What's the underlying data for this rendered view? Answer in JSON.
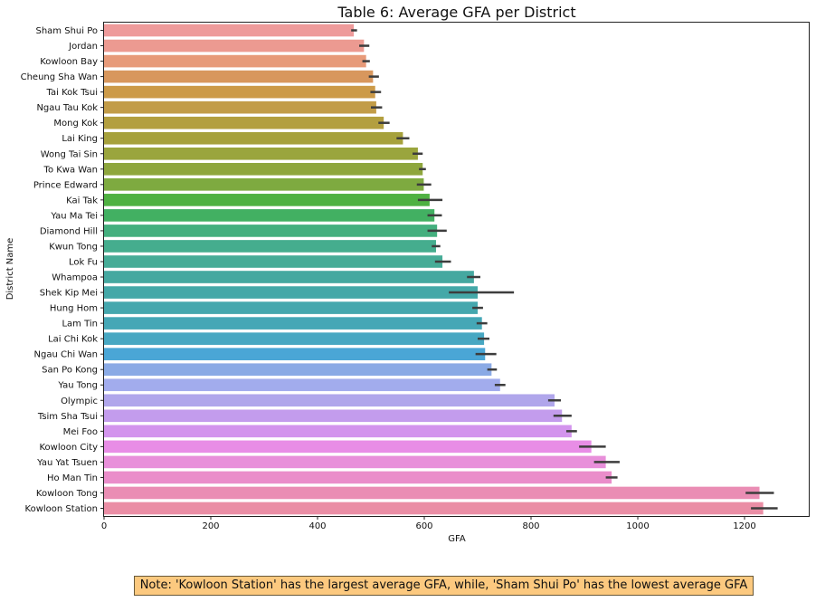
{
  "chart_data": {
    "type": "bar",
    "orientation": "horizontal",
    "title": "Table 6: Average GFA per District",
    "xlabel": "GFA",
    "ylabel": "District Name",
    "xlim": [
      0,
      1322
    ],
    "xticks": [
      0,
      200,
      400,
      600,
      800,
      1000,
      1200
    ],
    "grid": false,
    "error_bars": true,
    "categories": [
      "Sham Shui Po",
      "Jordan",
      "Kowloon Bay",
      "Cheung Sha Wan",
      "Tai Kok Tsui",
      "Ngau Tau Kok",
      "Mong Kok",
      "Lai King",
      "Wong Tai Sin",
      "To Kwa Wan",
      "Prince Edward",
      "Kai Tak",
      "Yau Ma Tei",
      "Diamond Hill",
      "Kwun Tong",
      "Lok Fu",
      "Whampoa",
      "Shek Kip Mei",
      "Hung Hom",
      "Lam Tin",
      "Lai Chi Kok",
      "Ngau Chi Wan",
      "San Po Kong",
      "Yau Tong",
      "Olympic",
      "Tsim Sha Tsui",
      "Mei Foo",
      "Kowloon City",
      "Yau Yat Tsuen",
      "Ho Man Tin",
      "Kowloon Tong",
      "Kowloon Station"
    ],
    "values": [
      468,
      487,
      491,
      504,
      508,
      510,
      524,
      560,
      588,
      597,
      599,
      610,
      619,
      624,
      622,
      634,
      693,
      700,
      700,
      708,
      712,
      714,
      726,
      742,
      844,
      858,
      876,
      913,
      940,
      951,
      1228,
      1235
    ],
    "ci_low": [
      463,
      478,
      484,
      496,
      499,
      500,
      514,
      548,
      578,
      590,
      586,
      588,
      606,
      606,
      614,
      620,
      680,
      646,
      690,
      698,
      700,
      696,
      718,
      732,
      832,
      842,
      866,
      890,
      918,
      940,
      1202,
      1212
    ],
    "ci_high": [
      474,
      497,
      498,
      515,
      519,
      521,
      535,
      572,
      597,
      603,
      613,
      634,
      633,
      642,
      630,
      650,
      705,
      768,
      710,
      718,
      722,
      735,
      736,
      752,
      856,
      876,
      886,
      940,
      966,
      962,
      1255,
      1262
    ],
    "colors": [
      "#ee9a9a",
      "#ec9a91",
      "#e79a79",
      "#d8975d",
      "#cc9a48",
      "#c29c48",
      "#b39f3f",
      "#a6a13c",
      "#9aa53d",
      "#8ea63d",
      "#7eaa40",
      "#4fb142",
      "#42b062",
      "#44af7e",
      "#45ad8e",
      "#46ac97",
      "#45a8a0",
      "#44a8a8",
      "#45a7ae",
      "#45a7b6",
      "#47a7c2",
      "#4aa6d6",
      "#8aaae5",
      "#a2aced",
      "#b0a6eb",
      "#c39ced",
      "#d394ed",
      "#e88de6",
      "#e88fda",
      "#ea8dca",
      "#ea8db4",
      "#ea8ea5"
    ]
  },
  "note": "Note: 'Kowloon Station' has the largest average GFA, while, 'Sham Shui Po' has the lowest average GFA"
}
